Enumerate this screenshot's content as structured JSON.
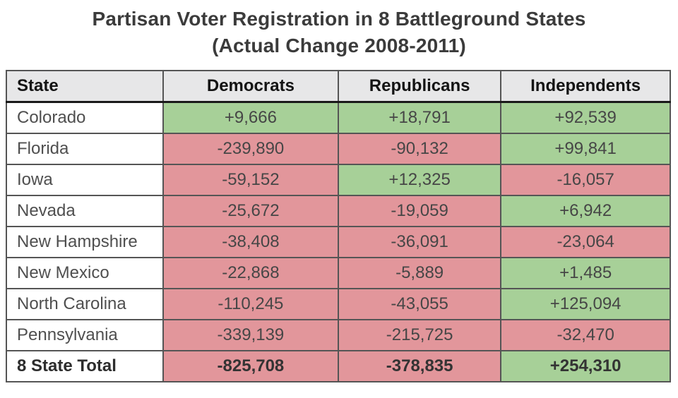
{
  "title": {
    "line1": "Partisan Voter Registration in 8 Battleground States",
    "line2": "(Actual Change 2008-2011)"
  },
  "chart_data": {
    "type": "table",
    "title": "Partisan Voter Registration in 8 Battleground States (Actual Change 2008-2011)",
    "columns": [
      "State",
      "Democrats",
      "Republicans",
      "Independents"
    ],
    "rows": [
      {
        "state": "Colorado",
        "values": [
          9666,
          18791,
          92539
        ],
        "display": [
          "+9,666",
          "+18,791",
          "+92,539"
        ],
        "is_total": false
      },
      {
        "state": "Florida",
        "values": [
          -239890,
          -90132,
          99841
        ],
        "display": [
          "-239,890",
          "-90,132",
          "+99,841"
        ],
        "is_total": false
      },
      {
        "state": "Iowa",
        "values": [
          -59152,
          12325,
          -16057
        ],
        "display": [
          "-59,152",
          "+12,325",
          "-16,057"
        ],
        "is_total": false
      },
      {
        "state": "Nevada",
        "values": [
          -25672,
          -19059,
          6942
        ],
        "display": [
          "-25,672",
          "-19,059",
          "+6,942"
        ],
        "is_total": false
      },
      {
        "state": "New Hampshire",
        "values": [
          -38408,
          -36091,
          -23064
        ],
        "display": [
          "-38,408",
          "-36,091",
          "-23,064"
        ],
        "is_total": false
      },
      {
        "state": "New Mexico",
        "values": [
          -22868,
          -5889,
          1485
        ],
        "display": [
          "-22,868",
          "-5,889",
          "+1,485"
        ],
        "is_total": false
      },
      {
        "state": "North Carolina",
        "values": [
          -110245,
          -43055,
          125094
        ],
        "display": [
          "-110,245",
          "-43,055",
          "+125,094"
        ],
        "is_total": false
      },
      {
        "state": "Pennsylvania",
        "values": [
          -339139,
          -215725,
          -32470
        ],
        "display": [
          "-339,139",
          "-215,725",
          "-32,470"
        ],
        "is_total": false
      },
      {
        "state": "8 State Total",
        "values": [
          -825708,
          -378835,
          254310
        ],
        "display": [
          "-825,708",
          "-378,835",
          "+254,310"
        ],
        "is_total": true
      }
    ],
    "cell_color_rule": "positive values have green background, negative values have red background",
    "colors": {
      "positive_bg": "#a7d098",
      "negative_bg": "#e2969b",
      "header_bg": "#e7e7e8"
    }
  }
}
